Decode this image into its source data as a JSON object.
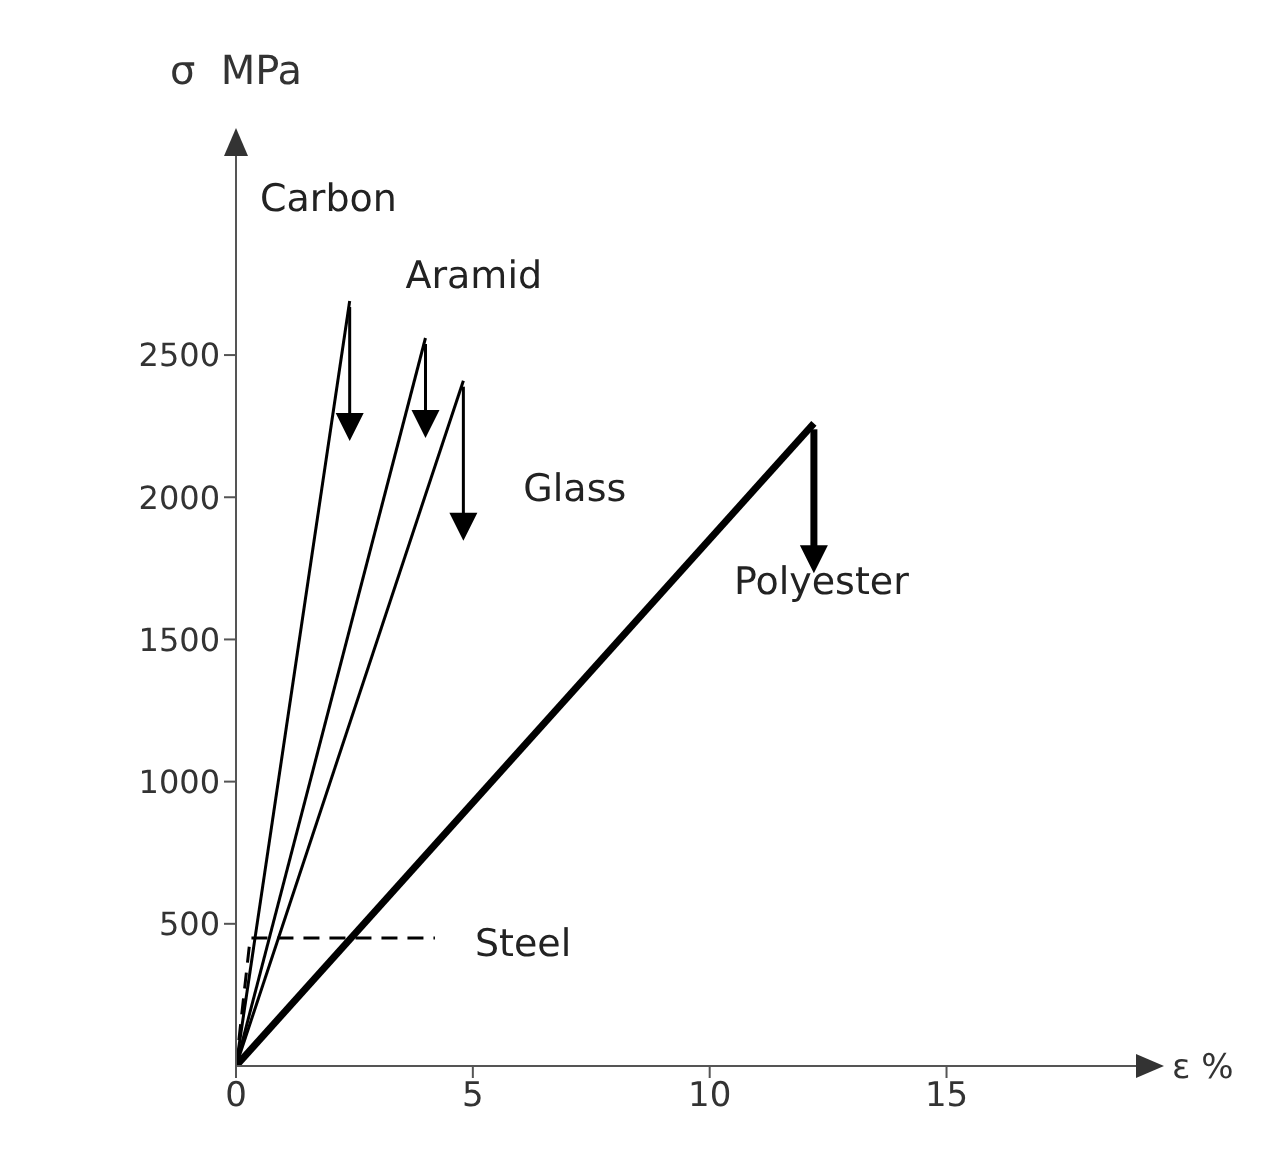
{
  "chart_data": {
    "type": "line",
    "xlabel": "ε %",
    "ylabel": "σ  MPa",
    "xlim": [
      0,
      19
    ],
    "ylim": [
      0,
      3200
    ],
    "xticks": [
      0,
      5,
      10,
      15
    ],
    "yticks": [
      500,
      1000,
      1500,
      2000,
      2500
    ],
    "grid": false,
    "marker": "none",
    "series": [
      {
        "name": "Carbon",
        "color": "#000000",
        "x": [
          0,
          2.4
        ],
        "values": [
          0,
          2690
        ],
        "line_style": "solid"
      },
      {
        "name": "Aramid",
        "color": "#000000",
        "x": [
          0,
          4.0
        ],
        "values": [
          0,
          2560
        ],
        "line_style": "solid"
      },
      {
        "name": "Glass",
        "color": "#000000",
        "x": [
          0,
          4.8
        ],
        "values": [
          0,
          2410
        ],
        "line_style": "solid"
      },
      {
        "name": "Polyester",
        "color": "#000000",
        "x": [
          0,
          12.2
        ],
        "values": [
          0,
          2260
        ],
        "line_style": "solid"
      },
      {
        "name": "Steel",
        "color": "#000000",
        "x": [
          0,
          0.3,
          4.2
        ],
        "values": [
          0,
          450,
          450
        ],
        "line_style": "dashed"
      }
    ]
  }
}
